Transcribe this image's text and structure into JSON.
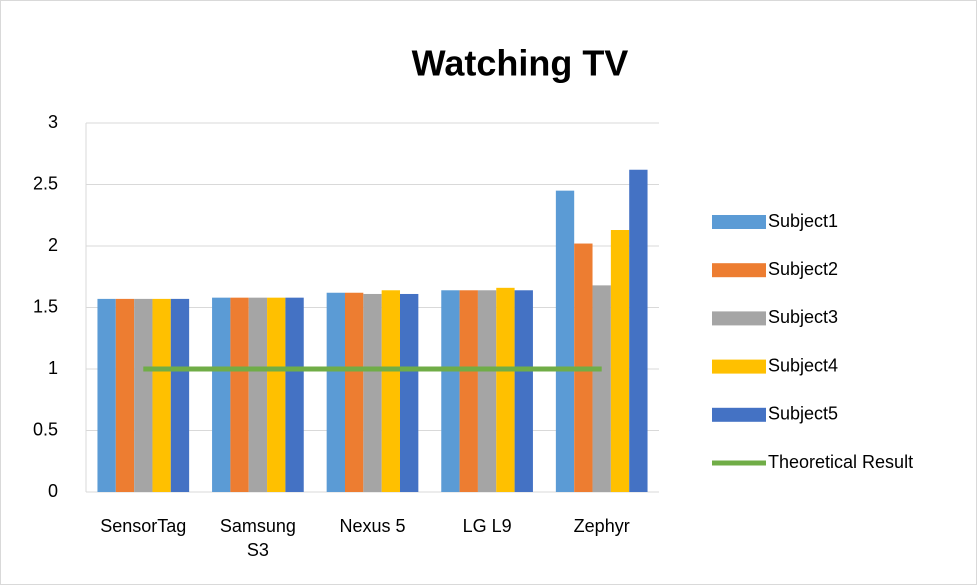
{
  "chart_data": {
    "type": "bar",
    "title": "Watching TV",
    "categories": [
      "SensorTag",
      "Samsung S3",
      "Nexus 5",
      "LG L9",
      "Zephyr"
    ],
    "series": [
      {
        "name": "Subject1",
        "color": "#5b9bd5",
        "values": [
          1.57,
          1.58,
          1.62,
          1.64,
          2.45
        ]
      },
      {
        "name": "Subject2",
        "color": "#ed7d31",
        "values": [
          1.57,
          1.58,
          1.62,
          1.64,
          2.02
        ]
      },
      {
        "name": "Subject3",
        "color": "#a5a5a5",
        "values": [
          1.57,
          1.58,
          1.61,
          1.64,
          1.68
        ]
      },
      {
        "name": "Subject4",
        "color": "#ffc000",
        "values": [
          1.57,
          1.58,
          1.64,
          1.66,
          2.13
        ]
      },
      {
        "name": "Subject5",
        "color": "#4472c4",
        "values": [
          1.57,
          1.58,
          1.61,
          1.64,
          2.62
        ]
      },
      {
        "name": "Theoretical Result",
        "type": "line",
        "color": "#70ad47",
        "values": [
          1,
          1,
          1,
          1,
          1
        ]
      }
    ],
    "ylim": [
      0,
      3
    ],
    "yticks": [
      0,
      0.5,
      1,
      1.5,
      2,
      2.5,
      3
    ],
    "grid": true,
    "legend": "right"
  }
}
